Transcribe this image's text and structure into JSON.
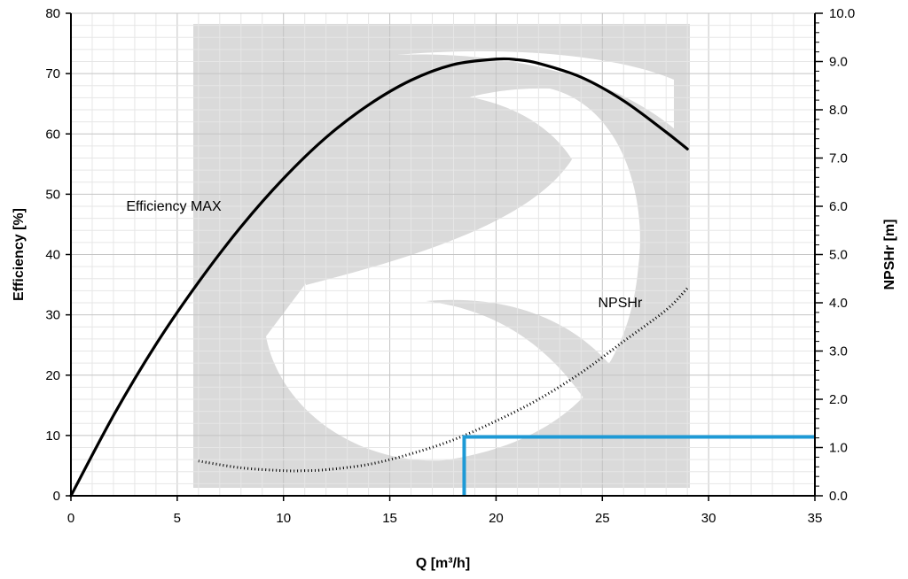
{
  "chart_data": {
    "type": "line",
    "title": "",
    "xlabel": "Q  [m³/h]",
    "ylabel_left": "Efficiency  [%]",
    "ylabel_right": "NPSHr [m]",
    "xlim": [
      0,
      35
    ],
    "ylim_left": [
      0,
      80
    ],
    "ylim_right": [
      0,
      10
    ],
    "x_ticks": [
      0,
      5,
      10,
      15,
      20,
      25,
      30,
      35
    ],
    "x_tick_labels": [
      "0",
      "5",
      "10",
      "15",
      "20",
      "25",
      "30",
      "35"
    ],
    "y_left_ticks": [
      0,
      10,
      20,
      30,
      40,
      50,
      60,
      70,
      80
    ],
    "y_left_tick_labels": [
      "0",
      "10",
      "20",
      "30",
      "40",
      "50",
      "60",
      "70",
      "80"
    ],
    "y_right_ticks": [
      0,
      1,
      2,
      3,
      4,
      5,
      6,
      7,
      8,
      9,
      10
    ],
    "y_right_tick_labels": [
      "0.0",
      "1.0",
      "2.0",
      "3.0",
      "4.0",
      "5.0",
      "6.0",
      "7.0",
      "8.0",
      "9.0",
      "10.0"
    ],
    "grid": true,
    "watermark": "brand-logo-watermark",
    "series": [
      {
        "name": "Efficiency MAX",
        "axis": "left",
        "style": "solid",
        "color": "#000000",
        "x": [
          0,
          2,
          4,
          6,
          8,
          10,
          12,
          14,
          16,
          18,
          20,
          21,
          22,
          24,
          26,
          28,
          29
        ],
        "y": [
          0,
          13.3,
          25.1,
          35.4,
          44.6,
          52.6,
          59.4,
          64.8,
          68.9,
          71.5,
          72.4,
          72.3,
          71.7,
          69.4,
          65.5,
          60.3,
          57.5
        ]
      },
      {
        "name": "NPSHr",
        "axis": "right",
        "style": "dotted",
        "color": "#000000",
        "x": [
          6,
          8,
          10,
          11,
          12,
          14,
          16,
          18,
          20,
          22,
          24,
          26,
          28,
          29
        ],
        "y": [
          0.72,
          0.58,
          0.52,
          0.52,
          0.54,
          0.65,
          0.87,
          1.16,
          1.55,
          2.0,
          2.55,
          3.2,
          3.85,
          4.3
        ]
      }
    ],
    "annotations": [
      {
        "text": "Efficiency MAX",
        "x": 2.6,
        "y": 47.3,
        "axis": "left"
      },
      {
        "text": "NPSHr",
        "x": 24.8,
        "y": 31.3,
        "axis": "left"
      }
    ],
    "reference_lines": {
      "color": "#1E9AD6",
      "x": 18.5,
      "y_right": 1.22
    }
  }
}
